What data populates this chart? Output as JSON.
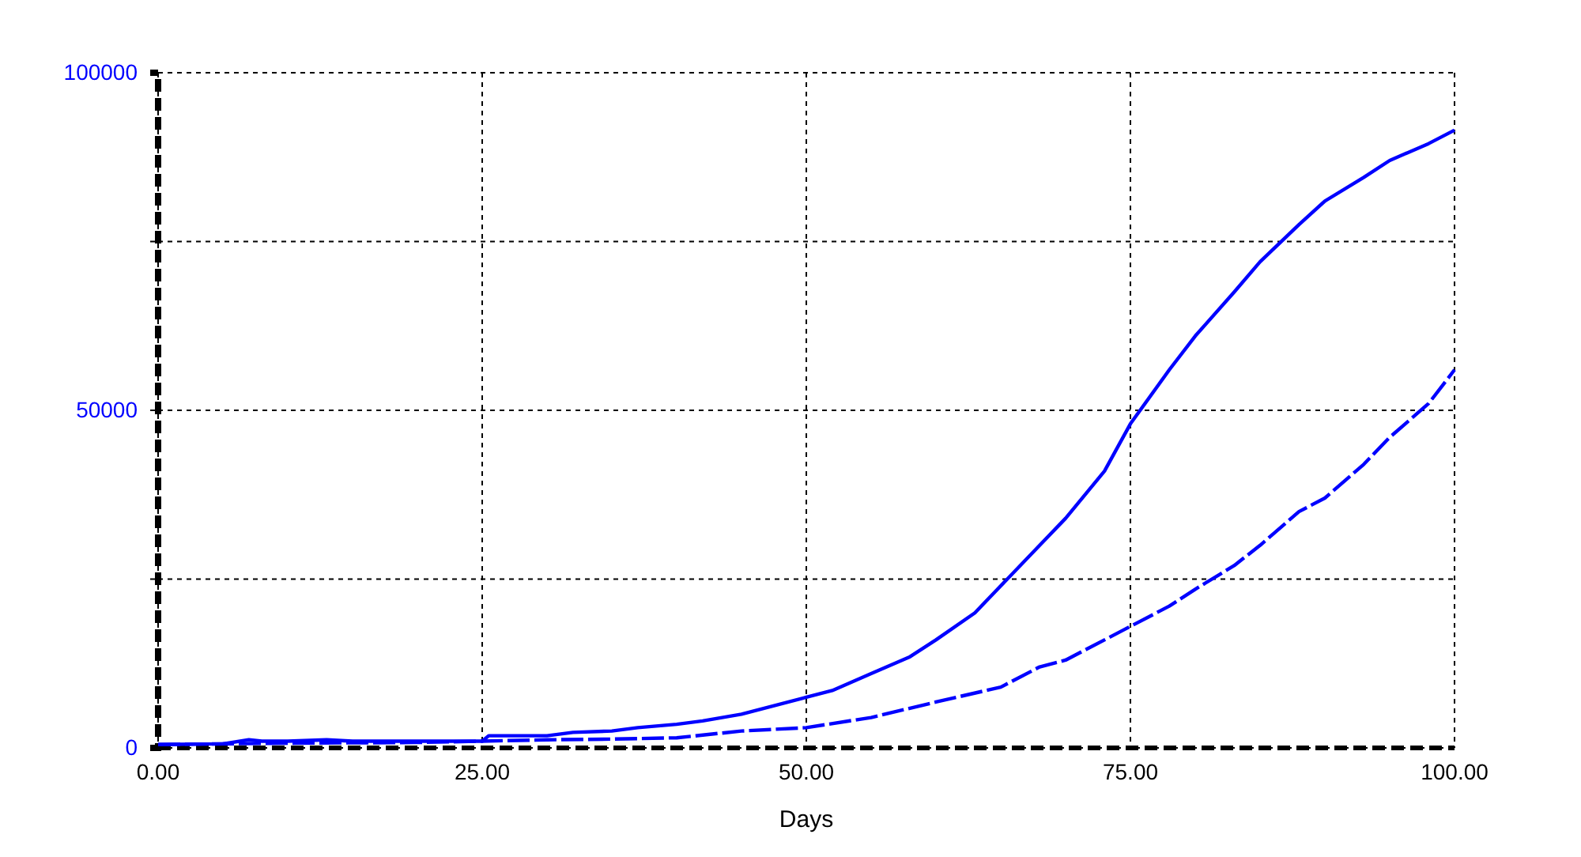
{
  "chart_data": {
    "type": "line",
    "xlabel": "Days",
    "xlim": [
      0,
      100
    ],
    "xticks": [
      {
        "value": 0,
        "label": "0.00"
      },
      {
        "value": 25,
        "label": "25.00"
      },
      {
        "value": 50,
        "label": "50.00"
      },
      {
        "value": 75,
        "label": "75.00"
      },
      {
        "value": 100,
        "label": "100.00"
      }
    ],
    "ylim": [
      0,
      100000
    ],
    "yticks": [
      0,
      {
        "value": 25000,
        "label": null
      },
      50000,
      {
        "value": 75000,
        "label": null
      },
      100000
    ],
    "grid": true,
    "marker": "none",
    "series": [
      {
        "color": "#0000ff",
        "line_style": "solid",
        "x": [
          0,
          5,
          7,
          8,
          10,
          13,
          15,
          20,
          25,
          25.5,
          30,
          32,
          35,
          37,
          40,
          42,
          45,
          50,
          52,
          55,
          58,
          60,
          63,
          65,
          68,
          70,
          73,
          75,
          78,
          80,
          83,
          85,
          88,
          90,
          93,
          95,
          98,
          100
        ],
        "values": [
          500,
          600,
          1200,
          1000,
          1000,
          1200,
          1000,
          1000,
          1000,
          1800,
          1800,
          2300,
          2500,
          3000,
          3500,
          4000,
          5000,
          7500,
          8500,
          11000,
          13500,
          16000,
          20000,
          24000,
          30000,
          34000,
          41000,
          48000,
          56000,
          61000,
          67500,
          72000,
          77500,
          81000,
          84500,
          87000,
          89500,
          91500
        ]
      },
      {
        "color": "#0000ff",
        "line_style": "dashed",
        "x": [
          0,
          10,
          20,
          25,
          30,
          35,
          40,
          45,
          50,
          55,
          60,
          65,
          68,
          70,
          73,
          75,
          78,
          80,
          83,
          85,
          88,
          90,
          93,
          95,
          98,
          100
        ],
        "values": [
          500,
          700,
          800,
          1000,
          1200,
          1300,
          1500,
          2500,
          3000,
          4500,
          6800,
          9000,
          12000,
          13000,
          16000,
          18000,
          21000,
          23500,
          27000,
          30000,
          35000,
          37000,
          42000,
          46000,
          51000,
          56000
        ]
      }
    ]
  }
}
